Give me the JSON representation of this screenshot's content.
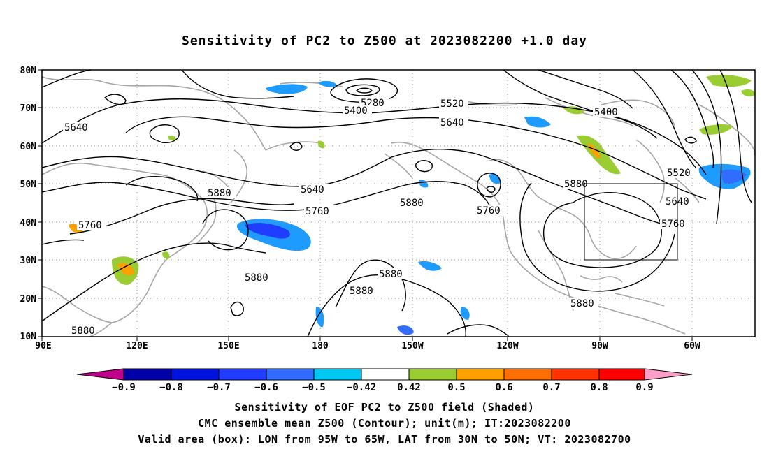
{
  "title": "Sensitivity of PC2 to Z500 at 2023082200 +1.0 day",
  "map": {
    "lon_labels": [
      "90E",
      "120E",
      "150E",
      "180",
      "150W",
      "120W",
      "90W",
      "60W"
    ],
    "lat_labels": [
      "10N",
      "20N",
      "30N",
      "40N",
      "50N",
      "60N",
      "70N",
      "80N"
    ],
    "contour_labels": [
      "5280",
      "5400",
      "5520",
      "5400",
      "5640",
      "5640",
      "5640",
      "5520",
      "5880",
      "5760",
      "5880",
      "5760",
      "5880",
      "5640",
      "5760",
      "5760",
      "5880",
      "5880",
      "5880",
      "5880"
    ],
    "contour_color": "#000000",
    "coastline_color": "#a6a6a6",
    "grid_style": "dotted",
    "box": {
      "lon": [
        "95W",
        "65W"
      ],
      "lat": [
        "30N",
        "50N"
      ]
    }
  },
  "colorbar": {
    "labels": [
      "−0.9",
      "−0.8",
      "−0.7",
      "−0.6",
      "−0.5",
      "−0.42",
      "0.42",
      "0.5",
      "0.6",
      "0.7",
      "0.8",
      "0.9"
    ],
    "colors": [
      "#c0008a",
      "#0000a8",
      "#0014e0",
      "#1f3cff",
      "#2f6cff",
      "#1e9bff",
      "#00c8f0",
      "#ffffff",
      "#9acd32",
      "#ffa000",
      "#ff6e00",
      "#ff3200",
      "#ff0000",
      "#ff9fc8"
    ]
  },
  "captions": [
    "Sensitivity of EOF PC2 to Z500 field (Shaded)",
    "CMC ensemble mean Z500 (Contour); unit(m); IT:2023082200",
    "Valid area (box): LON from 95W to 65W, LAT from 30N to 50N; VT: 2023082700"
  ]
}
